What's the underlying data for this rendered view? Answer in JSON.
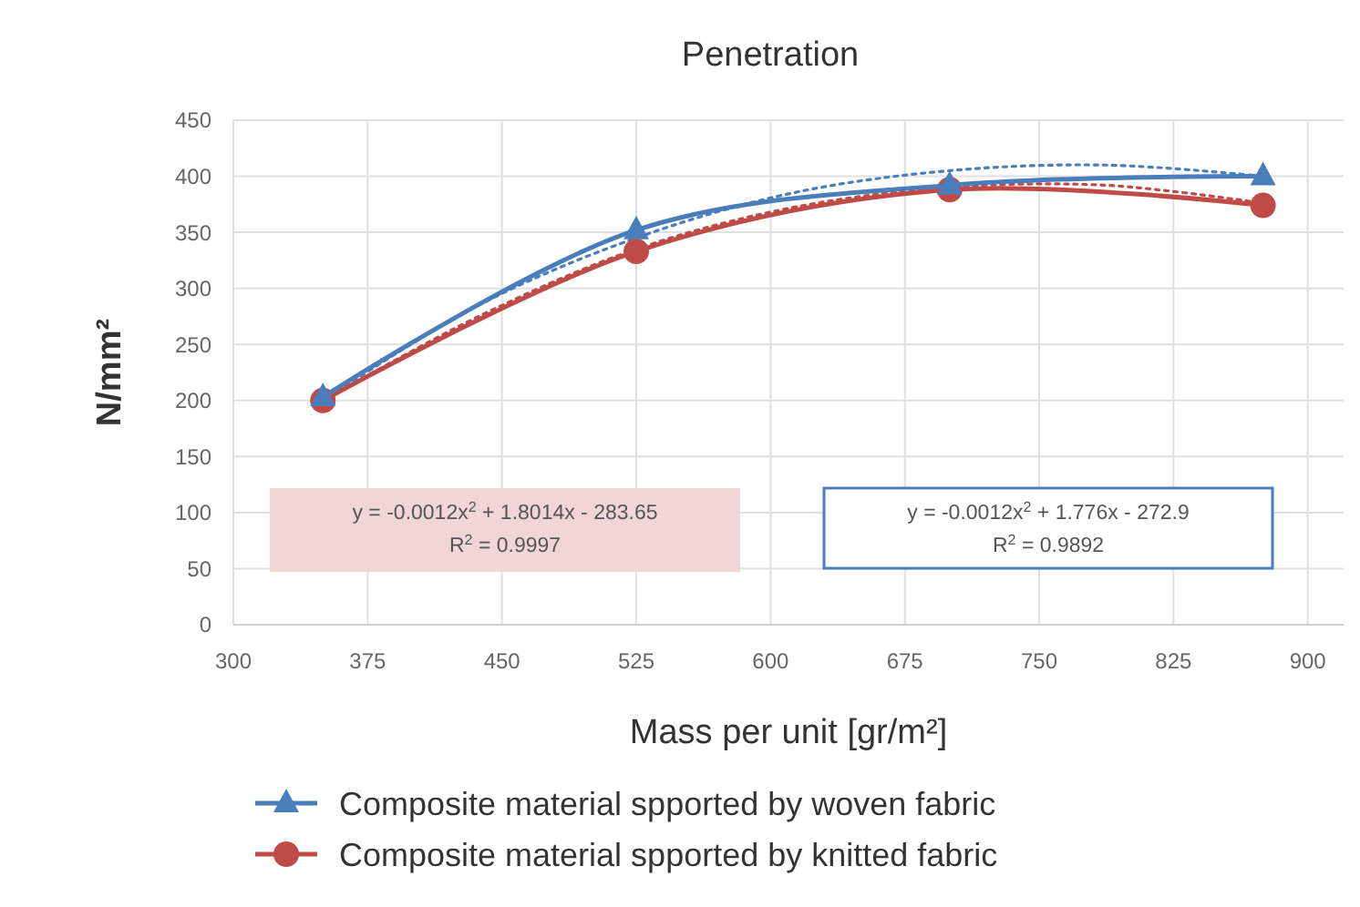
{
  "chart_data": {
    "type": "line",
    "title": "Penetration",
    "xlabel": "Mass per unit [gr/m²]",
    "ylabel": "N/mm²",
    "xlim": [
      300,
      920
    ],
    "xticks": [
      300,
      375,
      450,
      525,
      600,
      675,
      750,
      825,
      900
    ],
    "ylim": [
      0,
      450
    ],
    "yticks": [
      0,
      50,
      100,
      150,
      200,
      250,
      300,
      350,
      400,
      450
    ],
    "grid": true,
    "legend": "bottom",
    "series": [
      {
        "name": "Composite material spported by woven fabric",
        "color": "#4a7ebb",
        "marker": "triangle",
        "x": [
          350,
          525,
          700,
          875
        ],
        "values": [
          203,
          352,
          392,
          400
        ]
      },
      {
        "name": "Composite material spported by knitted fabric",
        "color": "#be4b48",
        "marker": "circle",
        "x": [
          350,
          525,
          700,
          875
        ],
        "values": [
          200,
          333,
          388,
          374
        ]
      },
      {
        "type": "line",
        "color": "#4a7ebb",
        "marker": "none",
        "line_style": "dotted",
        "x": [
          350,
          437,
          525,
          612,
          700,
          787,
          875
        ],
        "values": [
          200,
          285,
          345,
          385,
          405,
          410,
          400
        ]
      },
      {
        "type": "line",
        "color": "#be4b48",
        "marker": "none",
        "line_style": "dotted",
        "x": [
          350,
          437,
          525,
          612,
          700,
          787,
          875
        ],
        "values": [
          200,
          275,
          335,
          372,
          390,
          392,
          376
        ]
      }
    ],
    "annotations": [
      "y = -0.0012x$^{2}$ + 1.8014x - 283.65",
      "R$^{2}$ = 0.9997",
      "y = -0.0012x$^{2}$ + 1.776x - 272.9",
      "R$^{2}$ = 0.9892"
    ]
  }
}
